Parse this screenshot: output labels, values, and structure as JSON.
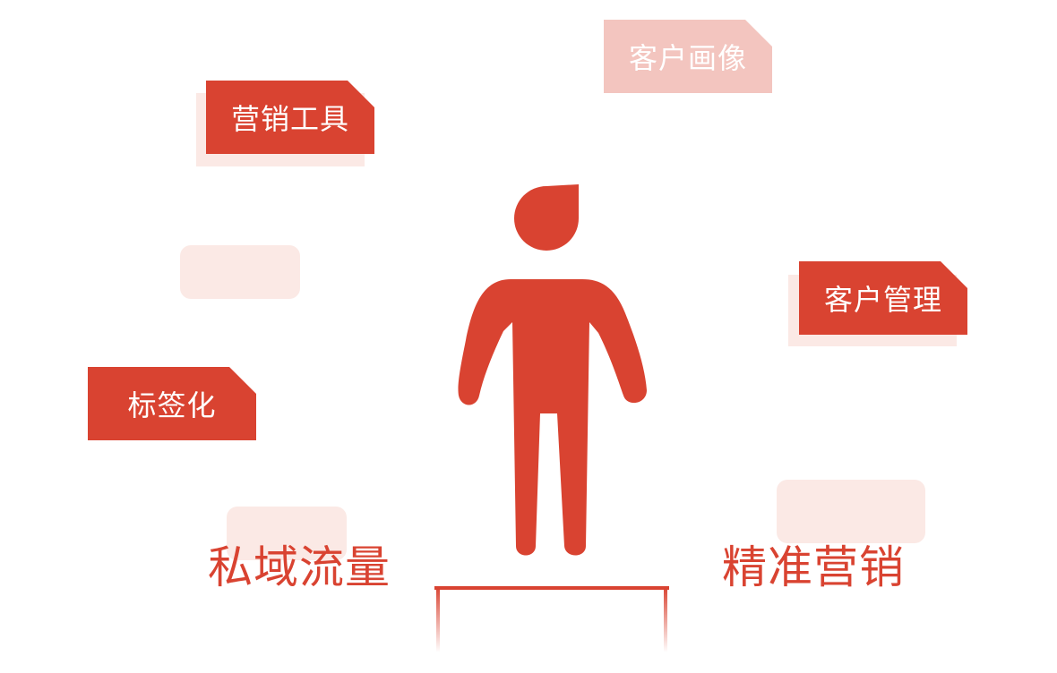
{
  "tags": {
    "customer_profile": "客户画像",
    "marketing_tools": "营销工具",
    "customer_management": "客户管理",
    "tagging": "标签化"
  },
  "labels": {
    "private_traffic": "私域流量",
    "precision_marketing": "精准营销"
  },
  "colors": {
    "accent": "#d94331",
    "faded_accent": "#f3c5bf",
    "soft_background": "#fbe9e5"
  },
  "icons": {
    "figure": "person-icon"
  }
}
